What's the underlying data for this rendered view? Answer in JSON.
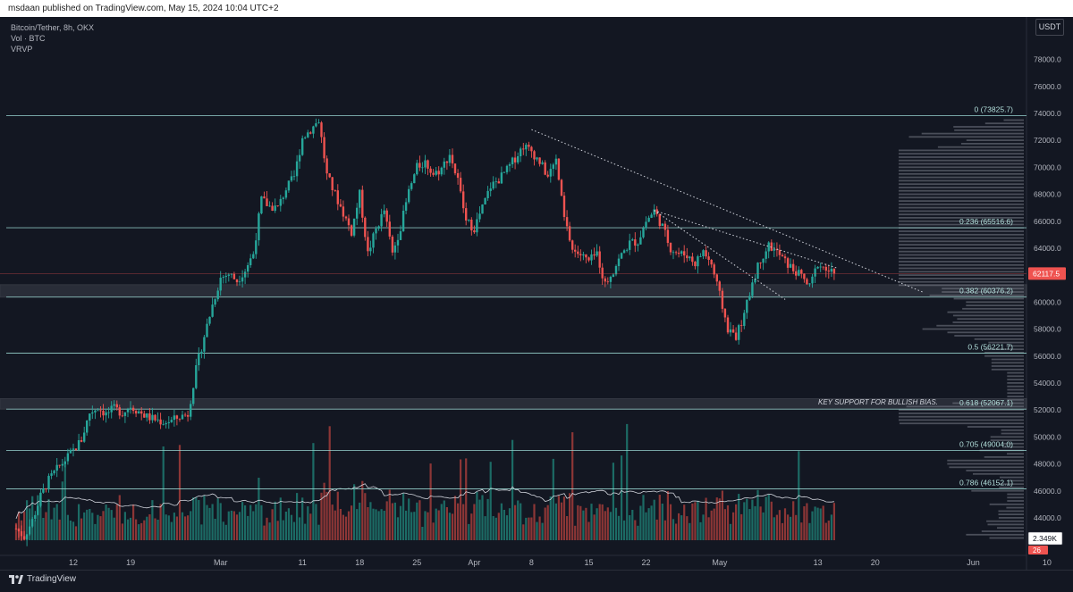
{
  "header": {
    "published_text": "msdaan published on TradingView.com, May 15, 2024 10:04 UTC+2"
  },
  "legend": {
    "symbol": "Bitcoin/Tether, 8h, OKX",
    "volume": "Vol · BTC",
    "vrvp": "VRVP"
  },
  "currency": "USDT",
  "footer": {
    "brand": "TradingView"
  },
  "colors": {
    "up": "#26a69a",
    "down": "#ef5350",
    "background": "#131722",
    "fib_line": "#9ad6d0"
  },
  "chart_data": {
    "type": "candlestick",
    "title": "Bitcoin/Tether, 8h, OKX",
    "y_axis": {
      "ylim": [
        41500,
        80000
      ],
      "ticks": [
        44000,
        46000,
        48000,
        50000,
        52000,
        54000,
        56000,
        58000,
        60000,
        62000,
        64000,
        66000,
        68000,
        70000,
        72000,
        74000,
        76000,
        78000
      ],
      "tick_labels": [
        "44000.0",
        "46000.0",
        "48000.0",
        "50000.0",
        "52000.0",
        "54000.0",
        "56000.0",
        "58000.0",
        "60000.0",
        "62000.0",
        "64000.0",
        "66000.0",
        "68000.0",
        "70000.0",
        "72000.0",
        "74000.0",
        "76000.0",
        "78000.0"
      ]
    },
    "x_axis": {
      "tick_labels": [
        "12",
        "19",
        "Mar",
        "11",
        "18",
        "25",
        "Apr",
        "8",
        "15",
        "22",
        "May",
        "13",
        "20",
        "Jun",
        "10"
      ],
      "tick_days": [
        0,
        7,
        18,
        28,
        35,
        42,
        49,
        56,
        63,
        70,
        79,
        91,
        98,
        110,
        119
      ]
    },
    "last_price": 62117.5,
    "last_price_label": "62117.5",
    "volume_label": "2.349K",
    "bars_label": "26",
    "fib_levels": [
      {
        "ratio": "0",
        "price": 73825.7,
        "label": "0 (73825.7)"
      },
      {
        "ratio": "0.236",
        "price": 65516.6,
        "label": "0.236 (65516.6)"
      },
      {
        "ratio": "0.382",
        "price": 60376.2,
        "label": "0.382 (60376.2)"
      },
      {
        "ratio": "0.5",
        "price": 56221.7,
        "label": "0.5 (56221.7)"
      },
      {
        "ratio": "0.618",
        "price": 52067.1,
        "label": "0.618 (52067.1)"
      },
      {
        "ratio": "0.705",
        "price": 49004.0,
        "label": "0.705 (49004.0)"
      },
      {
        "ratio": "0.786",
        "price": 46152.1,
        "label": "0.786 (46152.1)"
      }
    ],
    "zones": [
      {
        "low": 60376,
        "high": 61300
      },
      {
        "low": 52067,
        "high": 52850
      }
    ],
    "annotation": "KEY SUPPORT FOR BULLISH BIAS.",
    "trendlines": [
      {
        "from": {
          "day": 56,
          "price": 72800
        },
        "to": {
          "day": 104,
          "price": 60700
        }
      },
      {
        "from": {
          "day": 71,
          "price": 66800
        },
        "to": {
          "day": 93.5,
          "price": 62500
        }
      },
      {
        "from": {
          "day": 71,
          "price": 66800
        },
        "to": {
          "day": 87,
          "price": 60200
        }
      }
    ],
    "price_path": [
      [
        -7,
        43200
      ],
      [
        -6,
        42600
      ],
      [
        -5,
        43800
      ],
      [
        -4,
        45600
      ],
      [
        -3,
        46800
      ],
      [
        -2,
        47600
      ],
      [
        -1,
        48300
      ],
      [
        0,
        49000
      ],
      [
        1,
        49800
      ],
      [
        2,
        51800
      ],
      [
        3,
        52200
      ],
      [
        4,
        51700
      ],
      [
        5,
        52100
      ],
      [
        6,
        51800
      ],
      [
        7,
        52300
      ],
      [
        8,
        51900
      ],
      [
        9,
        51500
      ],
      [
        10,
        51300
      ],
      [
        11,
        51100
      ],
      [
        12,
        51200
      ],
      [
        13,
        51500
      ],
      [
        14,
        51700
      ],
      [
        15,
        55000
      ],
      [
        16,
        57500
      ],
      [
        17,
        59800
      ],
      [
        18,
        61800
      ],
      [
        19,
        62100
      ],
      [
        20,
        61600
      ],
      [
        21,
        62400
      ],
      [
        22,
        63600
      ],
      [
        23,
        67600
      ],
      [
        24,
        67100
      ],
      [
        25,
        67000
      ],
      [
        26,
        68400
      ],
      [
        27,
        69300
      ],
      [
        28,
        72200
      ],
      [
        29,
        72800
      ],
      [
        30,
        73500
      ],
      [
        31,
        69400
      ],
      [
        32,
        68000
      ],
      [
        33,
        66600
      ],
      [
        34,
        65200
      ],
      [
        35,
        68000
      ],
      [
        36,
        63600
      ],
      [
        37,
        65400
      ],
      [
        38,
        66800
      ],
      [
        39,
        63600
      ],
      [
        40,
        65600
      ],
      [
        41,
        68200
      ],
      [
        42,
        70000
      ],
      [
        43,
        70400
      ],
      [
        44,
        69500
      ],
      [
        45,
        69900
      ],
      [
        46,
        71000
      ],
      [
        47,
        69000
      ],
      [
        48,
        66000
      ],
      [
        49,
        65500
      ],
      [
        50,
        67000
      ],
      [
        51,
        68600
      ],
      [
        52,
        69100
      ],
      [
        53,
        69800
      ],
      [
        54,
        70700
      ],
      [
        55,
        71600
      ],
      [
        56,
        71200
      ],
      [
        57,
        70400
      ],
      [
        58,
        69300
      ],
      [
        59,
        70500
      ],
      [
        60,
        66200
      ],
      [
        61,
        63900
      ],
      [
        62,
        63500
      ],
      [
        63,
        63000
      ],
      [
        64,
        63600
      ],
      [
        65,
        61300
      ],
      [
        66,
        62400
      ],
      [
        67,
        63500
      ],
      [
        68,
        64400
      ],
      [
        69,
        64500
      ],
      [
        70,
        66000
      ],
      [
        71,
        66800
      ],
      [
        72,
        65600
      ],
      [
        73,
        64000
      ],
      [
        74,
        63600
      ],
      [
        75,
        63500
      ],
      [
        76,
        62900
      ],
      [
        77,
        63800
      ],
      [
        78,
        62800
      ],
      [
        79,
        60500
      ],
      [
        80,
        58000
      ],
      [
        81,
        57500
      ],
      [
        82,
        59000
      ],
      [
        83,
        61500
      ],
      [
        84,
        63200
      ],
      [
        85,
        64200
      ],
      [
        86,
        63700
      ],
      [
        87,
        63000
      ],
      [
        88,
        62400
      ],
      [
        89,
        61900
      ],
      [
        90,
        61100
      ],
      [
        91,
        62900
      ],
      [
        92,
        62400
      ],
      [
        93,
        62117.5
      ]
    ]
  }
}
